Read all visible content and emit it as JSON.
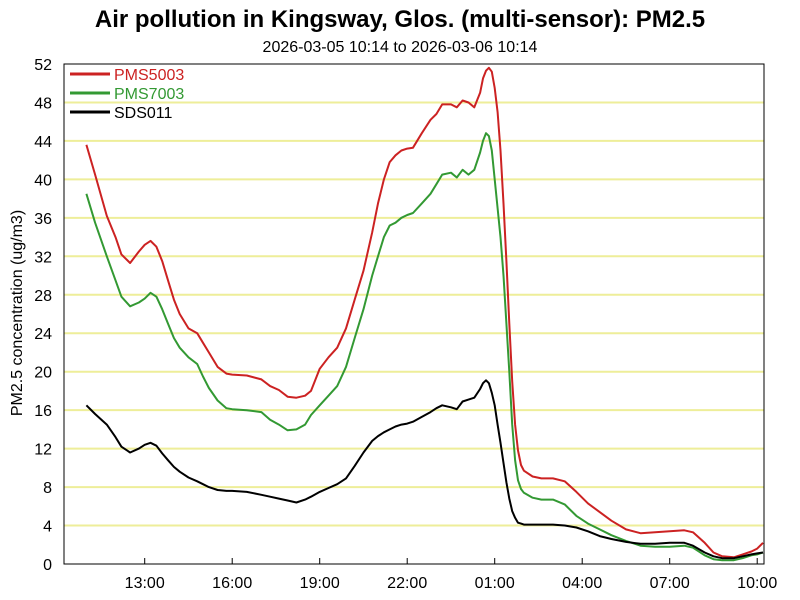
{
  "chart_data": {
    "type": "line",
    "title": "Air pollution in Kingsway, Glos. (multi-sensor): PM2.5",
    "subtitle": "2026-03-05 10:14 to 2026-03-06 10:14",
    "ylabel": "PM2.5 concentration (ug/m3)",
    "xlabel": "",
    "ylim": [
      0,
      52
    ],
    "xlim": [
      10.233,
      34.233
    ],
    "x_unit": "hour of day (continues past 24 into next day)",
    "yticks": [
      0,
      4,
      8,
      12,
      16,
      20,
      24,
      28,
      32,
      36,
      40,
      44,
      48,
      52
    ],
    "xticks": [
      {
        "x": 13,
        "label": "13:00"
      },
      {
        "x": 16,
        "label": "16:00"
      },
      {
        "x": 19,
        "label": "19:00"
      },
      {
        "x": 22,
        "label": "22:00"
      },
      {
        "x": 25,
        "label": "01:00"
      },
      {
        "x": 28,
        "label": "04:00"
      },
      {
        "x": 31,
        "label": "07:00"
      },
      {
        "x": 34,
        "label": "10:00"
      }
    ],
    "grid": "horizontal",
    "legend": "top-left",
    "series": [
      {
        "name": "PMS5003",
        "color": "#cc2222",
        "points": [
          [
            11.0,
            43.6
          ],
          [
            11.3,
            40.5
          ],
          [
            11.7,
            36.2
          ],
          [
            12.0,
            34.0
          ],
          [
            12.2,
            32.2
          ],
          [
            12.5,
            31.3
          ],
          [
            12.8,
            32.5
          ],
          [
            13.0,
            33.2
          ],
          [
            13.2,
            33.6
          ],
          [
            13.4,
            33.0
          ],
          [
            13.6,
            31.5
          ],
          [
            13.8,
            29.5
          ],
          [
            14.0,
            27.5
          ],
          [
            14.2,
            26.0
          ],
          [
            14.5,
            24.5
          ],
          [
            14.8,
            24.0
          ],
          [
            15.0,
            23.0
          ],
          [
            15.2,
            22.0
          ],
          [
            15.5,
            20.5
          ],
          [
            15.8,
            19.8
          ],
          [
            16.0,
            19.7
          ],
          [
            16.5,
            19.6
          ],
          [
            17.0,
            19.2
          ],
          [
            17.3,
            18.5
          ],
          [
            17.6,
            18.1
          ],
          [
            17.9,
            17.4
          ],
          [
            18.2,
            17.3
          ],
          [
            18.5,
            17.5
          ],
          [
            18.7,
            18.0
          ],
          [
            19.0,
            20.3
          ],
          [
            19.3,
            21.5
          ],
          [
            19.6,
            22.5
          ],
          [
            19.9,
            24.5
          ],
          [
            20.2,
            27.5
          ],
          [
            20.5,
            30.5
          ],
          [
            20.8,
            34.5
          ],
          [
            21.0,
            37.5
          ],
          [
            21.2,
            40.0
          ],
          [
            21.4,
            41.8
          ],
          [
            21.6,
            42.5
          ],
          [
            21.8,
            43.0
          ],
          [
            22.0,
            43.2
          ],
          [
            22.2,
            43.3
          ],
          [
            22.5,
            44.8
          ],
          [
            22.8,
            46.2
          ],
          [
            23.0,
            46.8
          ],
          [
            23.2,
            47.8
          ],
          [
            23.5,
            47.8
          ],
          [
            23.7,
            47.5
          ],
          [
            23.9,
            48.2
          ],
          [
            24.1,
            48.0
          ],
          [
            24.3,
            47.5
          ],
          [
            24.5,
            49.0
          ],
          [
            24.6,
            50.5
          ],
          [
            24.7,
            51.3
          ],
          [
            24.8,
            51.6
          ],
          [
            24.9,
            51.2
          ],
          [
            25.0,
            49.5
          ],
          [
            25.1,
            47.0
          ],
          [
            25.2,
            43.0
          ],
          [
            25.3,
            37.5
          ],
          [
            25.4,
            31.5
          ],
          [
            25.5,
            25.0
          ],
          [
            25.6,
            19.0
          ],
          [
            25.7,
            14.5
          ],
          [
            25.8,
            11.8
          ],
          [
            25.9,
            10.3
          ],
          [
            26.0,
            9.7
          ],
          [
            26.3,
            9.1
          ],
          [
            26.6,
            8.9
          ],
          [
            27.0,
            8.9
          ],
          [
            27.4,
            8.6
          ],
          [
            27.8,
            7.5
          ],
          [
            28.2,
            6.3
          ],
          [
            28.6,
            5.4
          ],
          [
            29.0,
            4.5
          ],
          [
            29.5,
            3.6
          ],
          [
            30.0,
            3.2
          ],
          [
            30.5,
            3.3
          ],
          [
            31.0,
            3.4
          ],
          [
            31.5,
            3.5
          ],
          [
            31.8,
            3.3
          ],
          [
            32.2,
            2.2
          ],
          [
            32.5,
            1.2
          ],
          [
            32.8,
            0.8
          ],
          [
            33.2,
            0.7
          ],
          [
            33.5,
            1.0
          ],
          [
            33.8,
            1.3
          ],
          [
            34.0,
            1.6
          ],
          [
            34.2,
            2.2
          ]
        ]
      },
      {
        "name": "PMS7003",
        "color": "#339933",
        "points": [
          [
            11.0,
            38.5
          ],
          [
            11.3,
            35.5
          ],
          [
            11.7,
            32.0
          ],
          [
            12.0,
            29.5
          ],
          [
            12.2,
            27.8
          ],
          [
            12.5,
            26.8
          ],
          [
            12.8,
            27.2
          ],
          [
            13.0,
            27.6
          ],
          [
            13.2,
            28.2
          ],
          [
            13.4,
            27.8
          ],
          [
            13.6,
            26.5
          ],
          [
            13.8,
            25.0
          ],
          [
            14.0,
            23.5
          ],
          [
            14.2,
            22.5
          ],
          [
            14.5,
            21.5
          ],
          [
            14.8,
            20.8
          ],
          [
            15.0,
            19.5
          ],
          [
            15.2,
            18.3
          ],
          [
            15.5,
            17.0
          ],
          [
            15.8,
            16.2
          ],
          [
            16.0,
            16.1
          ],
          [
            16.5,
            16.0
          ],
          [
            17.0,
            15.8
          ],
          [
            17.3,
            15.0
          ],
          [
            17.6,
            14.5
          ],
          [
            17.9,
            13.9
          ],
          [
            18.2,
            14.0
          ],
          [
            18.5,
            14.5
          ],
          [
            18.7,
            15.5
          ],
          [
            19.0,
            16.5
          ],
          [
            19.3,
            17.5
          ],
          [
            19.6,
            18.5
          ],
          [
            19.9,
            20.5
          ],
          [
            20.2,
            23.5
          ],
          [
            20.5,
            26.5
          ],
          [
            20.8,
            30.0
          ],
          [
            21.0,
            32.0
          ],
          [
            21.2,
            34.0
          ],
          [
            21.4,
            35.2
          ],
          [
            21.6,
            35.5
          ],
          [
            21.8,
            36.0
          ],
          [
            22.0,
            36.3
          ],
          [
            22.2,
            36.5
          ],
          [
            22.5,
            37.5
          ],
          [
            22.8,
            38.5
          ],
          [
            23.0,
            39.5
          ],
          [
            23.2,
            40.5
          ],
          [
            23.5,
            40.7
          ],
          [
            23.7,
            40.2
          ],
          [
            23.9,
            41.0
          ],
          [
            24.1,
            40.5
          ],
          [
            24.3,
            41.0
          ],
          [
            24.5,
            42.8
          ],
          [
            24.6,
            44.0
          ],
          [
            24.7,
            44.8
          ],
          [
            24.8,
            44.5
          ],
          [
            24.9,
            43.0
          ],
          [
            25.0,
            40.0
          ],
          [
            25.1,
            37.0
          ],
          [
            25.2,
            34.0
          ],
          [
            25.3,
            30.0
          ],
          [
            25.4,
            25.0
          ],
          [
            25.5,
            20.0
          ],
          [
            25.6,
            14.5
          ],
          [
            25.7,
            10.8
          ],
          [
            25.8,
            8.7
          ],
          [
            25.9,
            7.8
          ],
          [
            26.0,
            7.4
          ],
          [
            26.3,
            6.9
          ],
          [
            26.6,
            6.7
          ],
          [
            27.0,
            6.7
          ],
          [
            27.4,
            6.2
          ],
          [
            27.8,
            5.0
          ],
          [
            28.2,
            4.2
          ],
          [
            28.6,
            3.6
          ],
          [
            29.0,
            3.0
          ],
          [
            29.5,
            2.4
          ],
          [
            30.0,
            1.9
          ],
          [
            30.5,
            1.8
          ],
          [
            31.0,
            1.8
          ],
          [
            31.5,
            1.9
          ],
          [
            31.8,
            1.7
          ],
          [
            32.2,
            0.9
          ],
          [
            32.5,
            0.5
          ],
          [
            32.8,
            0.4
          ],
          [
            33.2,
            0.4
          ],
          [
            33.5,
            0.6
          ],
          [
            33.8,
            0.9
          ],
          [
            34.0,
            1.0
          ],
          [
            34.2,
            1.2
          ]
        ]
      },
      {
        "name": "SDS011",
        "color": "#000000",
        "points": [
          [
            11.0,
            16.5
          ],
          [
            11.3,
            15.6
          ],
          [
            11.7,
            14.5
          ],
          [
            12.0,
            13.2
          ],
          [
            12.2,
            12.2
          ],
          [
            12.5,
            11.6
          ],
          [
            12.8,
            12.0
          ],
          [
            13.0,
            12.4
          ],
          [
            13.2,
            12.6
          ],
          [
            13.4,
            12.3
          ],
          [
            13.6,
            11.5
          ],
          [
            13.8,
            10.8
          ],
          [
            14.0,
            10.1
          ],
          [
            14.2,
            9.6
          ],
          [
            14.5,
            9.0
          ],
          [
            14.8,
            8.6
          ],
          [
            15.0,
            8.3
          ],
          [
            15.2,
            8.0
          ],
          [
            15.5,
            7.7
          ],
          [
            15.8,
            7.6
          ],
          [
            16.0,
            7.6
          ],
          [
            16.5,
            7.5
          ],
          [
            17.0,
            7.2
          ],
          [
            17.3,
            7.0
          ],
          [
            17.6,
            6.8
          ],
          [
            17.9,
            6.6
          ],
          [
            18.2,
            6.4
          ],
          [
            18.5,
            6.7
          ],
          [
            18.7,
            7.0
          ],
          [
            19.0,
            7.5
          ],
          [
            19.3,
            7.9
          ],
          [
            19.6,
            8.3
          ],
          [
            19.9,
            8.9
          ],
          [
            20.2,
            10.2
          ],
          [
            20.5,
            11.6
          ],
          [
            20.8,
            12.8
          ],
          [
            21.0,
            13.3
          ],
          [
            21.2,
            13.7
          ],
          [
            21.4,
            14.0
          ],
          [
            21.6,
            14.3
          ],
          [
            21.8,
            14.5
          ],
          [
            22.0,
            14.6
          ],
          [
            22.2,
            14.8
          ],
          [
            22.5,
            15.3
          ],
          [
            22.8,
            15.8
          ],
          [
            23.0,
            16.2
          ],
          [
            23.2,
            16.5
          ],
          [
            23.5,
            16.3
          ],
          [
            23.7,
            16.1
          ],
          [
            23.9,
            16.9
          ],
          [
            24.1,
            17.1
          ],
          [
            24.3,
            17.3
          ],
          [
            24.5,
            18.2
          ],
          [
            24.6,
            18.8
          ],
          [
            24.7,
            19.1
          ],
          [
            24.8,
            18.8
          ],
          [
            24.9,
            17.8
          ],
          [
            25.0,
            16.5
          ],
          [
            25.1,
            14.5
          ],
          [
            25.2,
            12.6
          ],
          [
            25.3,
            10.5
          ],
          [
            25.4,
            8.5
          ],
          [
            25.5,
            6.8
          ],
          [
            25.6,
            5.5
          ],
          [
            25.7,
            4.8
          ],
          [
            25.8,
            4.3
          ],
          [
            25.9,
            4.2
          ],
          [
            26.0,
            4.1
          ],
          [
            26.3,
            4.1
          ],
          [
            26.6,
            4.1
          ],
          [
            27.0,
            4.1
          ],
          [
            27.4,
            4.0
          ],
          [
            27.8,
            3.8
          ],
          [
            28.2,
            3.4
          ],
          [
            28.6,
            2.9
          ],
          [
            29.0,
            2.6
          ],
          [
            29.5,
            2.3
          ],
          [
            30.0,
            2.1
          ],
          [
            30.5,
            2.1
          ],
          [
            31.0,
            2.2
          ],
          [
            31.5,
            2.2
          ],
          [
            31.8,
            1.9
          ],
          [
            32.2,
            1.2
          ],
          [
            32.5,
            0.8
          ],
          [
            32.8,
            0.6
          ],
          [
            33.2,
            0.6
          ],
          [
            33.5,
            0.8
          ],
          [
            33.8,
            1.0
          ],
          [
            34.0,
            1.1
          ],
          [
            34.2,
            1.2
          ]
        ]
      }
    ]
  }
}
